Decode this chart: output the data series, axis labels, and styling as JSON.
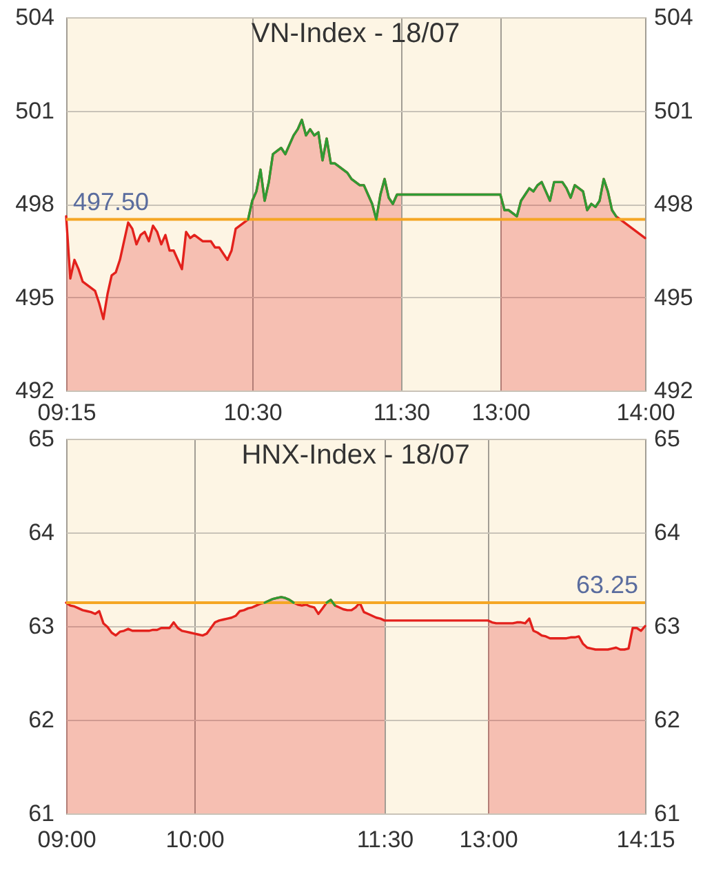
{
  "chart_data": [
    {
      "type": "area",
      "title": "VN-Index - 18/07",
      "categories": [
        "09:15",
        null,
        null,
        null,
        null,
        null,
        null,
        null,
        null,
        null,
        null,
        null,
        null,
        null,
        null,
        null,
        null,
        null,
        null,
        null,
        null,
        null,
        null,
        null,
        null,
        null,
        null,
        null,
        null,
        null,
        null,
        null,
        null,
        null,
        null,
        null,
        null,
        null,
        null,
        null,
        null,
        null,
        null,
        null,
        null,
        "10:30",
        null,
        null,
        null,
        null,
        null,
        null,
        null,
        null,
        null,
        null,
        null,
        null,
        null,
        null,
        null,
        null,
        null,
        null,
        null,
        null,
        null,
        null,
        null,
        null,
        null,
        null,
        null,
        null,
        null,
        null,
        null,
        null,
        null,
        null,
        null,
        "11:30",
        null,
        null,
        null,
        null,
        null,
        null,
        null,
        null,
        null,
        null,
        null,
        null,
        null,
        null,
        null,
        null,
        null,
        null,
        null,
        null,
        null,
        null,
        null,
        "13:00",
        null,
        null,
        null,
        null,
        null,
        null,
        null,
        null,
        null,
        null,
        null,
        null,
        null,
        null,
        null,
        null,
        null,
        null,
        null,
        null,
        null,
        null,
        null,
        null,
        null,
        null,
        null,
        null,
        null,
        null,
        null,
        null,
        null,
        null,
        "14:00"
      ],
      "series": [
        {
          "type": "area",
          "color": "#e3211c",
          "values": [
            497.6,
            495.6,
            496.2,
            495.9,
            495.5,
            495.4,
            495.3,
            495.2,
            494.8,
            494.3,
            495.1,
            495.7,
            495.8,
            496.2,
            496.8,
            497.4,
            497.2,
            496.7,
            497,
            497.1,
            496.8,
            497.3,
            497.1,
            496.7,
            497,
            496.5,
            496.5,
            496.2,
            495.9,
            497.1,
            496.9,
            497,
            496.9,
            496.8,
            496.8,
            496.8,
            496.6,
            496.6,
            496.4,
            496.2,
            496.5,
            497.2,
            497.3,
            497.4,
            497.5,
            498.1,
            498.4,
            499.1,
            498.1,
            498.7,
            499.6,
            499.7,
            499.8,
            499.6,
            499.9,
            500.2,
            500.4,
            500.7,
            500.2,
            500.4,
            500.2,
            500.3,
            499.4,
            500.1,
            499.3,
            499.3,
            499.2,
            499.1,
            499,
            498.8,
            498.7,
            498.6,
            498.6,
            498.3,
            498,
            497.5,
            498.3,
            498.8,
            498.2,
            498,
            498.3,
            498.3,
            null,
            null,
            null,
            null,
            null,
            null,
            null,
            null,
            null,
            null,
            null,
            null,
            null,
            null,
            null,
            null,
            null,
            null,
            null,
            null,
            null,
            null,
            null,
            498.3,
            497.8,
            497.8,
            497.7,
            497.6,
            498.1,
            498.3,
            498.5,
            498.4,
            498.6,
            498.7,
            498.4,
            498.1,
            498.7,
            498.7,
            498.7,
            498.5,
            498.2,
            498.6,
            498.5,
            498.4,
            497.8,
            498,
            497.9,
            498.1,
            498.8,
            498.4,
            497.8,
            497.6,
            497.5,
            497.4,
            497.3,
            497.2,
            497.1,
            497,
            496.9
          ]
        },
        {
          "type": "line",
          "color": "#2f9b34",
          "values": [
            null,
            null,
            null,
            null,
            null,
            null,
            null,
            null,
            null,
            null,
            null,
            null,
            null,
            null,
            null,
            null,
            null,
            null,
            null,
            null,
            null,
            null,
            null,
            null,
            null,
            null,
            null,
            null,
            null,
            null,
            null,
            null,
            null,
            null,
            null,
            null,
            null,
            null,
            null,
            null,
            null,
            null,
            null,
            null,
            497.5,
            498.1,
            498.4,
            499.1,
            498.1,
            498.7,
            499.6,
            499.7,
            499.8,
            499.6,
            499.9,
            500.2,
            500.4,
            500.7,
            500.2,
            500.4,
            500.2,
            500.3,
            499.4,
            500.1,
            499.3,
            499.3,
            499.2,
            499.1,
            499,
            498.8,
            498.7,
            498.6,
            498.6,
            498.3,
            498,
            497.5,
            498.3,
            498.8,
            498.2,
            498,
            498.3,
            498.3,
            498.3,
            498.3,
            498.3,
            498.3,
            498.3,
            498.3,
            498.3,
            498.3,
            498.3,
            498.3,
            498.3,
            498.3,
            498.3,
            498.3,
            498.3,
            498.3,
            498.3,
            498.3,
            498.3,
            498.3,
            498.3,
            498.3,
            498.3,
            498.3,
            497.8,
            497.8,
            497.7,
            497.6,
            498.1,
            498.3,
            498.5,
            498.4,
            498.6,
            498.7,
            498.4,
            498.1,
            498.7,
            498.7,
            498.7,
            498.5,
            498.2,
            498.6,
            498.5,
            498.4,
            497.8,
            498,
            497.9,
            498.1,
            498.8,
            498.4,
            497.8,
            497.6,
            null,
            null,
            null,
            null,
            null,
            null,
            null
          ]
        }
      ],
      "ylim": [
        492,
        504
      ],
      "yticks": [
        492,
        495,
        498,
        501,
        504
      ],
      "y2lim": [
        492,
        504
      ],
      "y2ticks": [
        492,
        495,
        498,
        501,
        504
      ],
      "ref_lines": [
        {
          "axis": "y",
          "value": 497.5,
          "label": "497.50",
          "color": "#f5a623"
        }
      ],
      "grid": true
    },
    {
      "type": "area",
      "title": "HNX-Index - 18/07",
      "categories": [
        "09:00",
        null,
        null,
        null,
        null,
        null,
        null,
        null,
        null,
        null,
        null,
        null,
        null,
        null,
        null,
        null,
        null,
        null,
        null,
        null,
        null,
        null,
        null,
        null,
        null,
        null,
        null,
        null,
        null,
        null,
        null,
        "10:00",
        null,
        null,
        null,
        null,
        null,
        null,
        null,
        null,
        null,
        null,
        null,
        null,
        null,
        null,
        null,
        null,
        null,
        null,
        null,
        null,
        null,
        null,
        null,
        null,
        null,
        null,
        null,
        null,
        null,
        null,
        null,
        null,
        null,
        null,
        null,
        null,
        null,
        null,
        null,
        null,
        null,
        null,
        null,
        null,
        null,
        "11:30",
        null,
        null,
        null,
        null,
        null,
        null,
        null,
        null,
        null,
        null,
        null,
        null,
        null,
        null,
        null,
        null,
        null,
        null,
        null,
        null,
        null,
        null,
        null,
        null,
        "13:00",
        null,
        null,
        null,
        null,
        null,
        null,
        null,
        null,
        null,
        null,
        null,
        null,
        null,
        null,
        null,
        null,
        null,
        null,
        null,
        null,
        null,
        null,
        null,
        null,
        null,
        null,
        null,
        null,
        null,
        null,
        null,
        null,
        null,
        null,
        null,
        null,
        null,
        "14:15"
      ],
      "series": [
        {
          "type": "area",
          "color": "#e3211c",
          "values": [
            63.25,
            63.22,
            63.21,
            63.19,
            63.17,
            63.16,
            63.15,
            63.13,
            63.16,
            63.03,
            62.99,
            62.93,
            62.9,
            62.94,
            62.95,
            62.97,
            62.95,
            62.95,
            62.95,
            62.95,
            62.95,
            62.96,
            62.96,
            62.98,
            62.98,
            62.98,
            63.04,
            62.98,
            62.95,
            62.94,
            62.93,
            62.92,
            62.91,
            62.9,
            62.92,
            62.98,
            63.04,
            63.06,
            63.07,
            63.08,
            63.09,
            63.11,
            63.16,
            63.17,
            63.19,
            63.2,
            63.22,
            63.24,
            63.25,
            63.27,
            63.29,
            63.3,
            63.31,
            63.3,
            63.28,
            63.25,
            63.23,
            63.22,
            63.23,
            63.21,
            63.2,
            63.13,
            63.19,
            63.25,
            63.28,
            63.22,
            63.2,
            63.18,
            63.17,
            63.17,
            63.2,
            63.25,
            63.15,
            63.13,
            63.11,
            63.09,
            63.08,
            63.06,
            null,
            null,
            null,
            null,
            null,
            null,
            null,
            null,
            null,
            null,
            null,
            null,
            null,
            null,
            null,
            null,
            null,
            null,
            null,
            null,
            null,
            null,
            null,
            null,
            63.06,
            63.04,
            63.03,
            63.03,
            63.03,
            63.03,
            63.03,
            63.04,
            63.04,
            63.03,
            63.08,
            62.95,
            62.93,
            62.9,
            62.89,
            62.87,
            62.87,
            62.87,
            62.87,
            62.87,
            62.88,
            62.88,
            62.89,
            62.81,
            62.77,
            62.76,
            62.75,
            62.75,
            62.75,
            62.75,
            62.76,
            62.77,
            62.75,
            62.75,
            62.76,
            62.98,
            62.98,
            62.95,
            63
          ]
        },
        {
          "type": "line",
          "color": "#2f9b34",
          "values": [
            null,
            null,
            null,
            null,
            null,
            null,
            null,
            null,
            null,
            null,
            null,
            null,
            null,
            null,
            null,
            null,
            null,
            null,
            null,
            null,
            null,
            null,
            null,
            null,
            null,
            null,
            null,
            null,
            null,
            null,
            null,
            null,
            null,
            null,
            null,
            null,
            null,
            null,
            null,
            null,
            null,
            null,
            null,
            null,
            null,
            null,
            null,
            null,
            63.25,
            63.27,
            63.29,
            63.3,
            63.31,
            63.3,
            63.28,
            63.25,
            null,
            null,
            null,
            null,
            null,
            null,
            null,
            null,
            null,
            null,
            null,
            null,
            null,
            null,
            null,
            null,
            null,
            null,
            null,
            null,
            null,
            null,
            null,
            null,
            null,
            null,
            null,
            null,
            null,
            null,
            null,
            null,
            null,
            null,
            null,
            null,
            null,
            null,
            null,
            null,
            null,
            null,
            null,
            null,
            null,
            null,
            null,
            null,
            null,
            null,
            null,
            null,
            null,
            null,
            null,
            null,
            null,
            null,
            null,
            null,
            null,
            null,
            null,
            null,
            null,
            null,
            null,
            null,
            null,
            null,
            null,
            null,
            null,
            null,
            null,
            null,
            null,
            null,
            null,
            null,
            null,
            null,
            null,
            null,
            null
          ]
        },
        {
          "type": "line",
          "color": "#2f9b34",
          "values": [
            null,
            null,
            null,
            null,
            null,
            null,
            null,
            null,
            null,
            null,
            null,
            null,
            null,
            null,
            null,
            null,
            null,
            null,
            null,
            null,
            null,
            null,
            null,
            null,
            null,
            null,
            null,
            null,
            null,
            null,
            null,
            null,
            null,
            null,
            null,
            null,
            null,
            null,
            null,
            null,
            null,
            null,
            null,
            null,
            null,
            null,
            null,
            null,
            null,
            null,
            null,
            null,
            null,
            null,
            null,
            null,
            null,
            null,
            null,
            null,
            null,
            null,
            null,
            63.25,
            63.28,
            63.22,
            null,
            null,
            null,
            null,
            null,
            null,
            null,
            null,
            null,
            null,
            null,
            null,
            null,
            null,
            null,
            null,
            null,
            null,
            null,
            null,
            null,
            null,
            null,
            null,
            null,
            null,
            null,
            null,
            null,
            null,
            null,
            null,
            null,
            null,
            null,
            null,
            null,
            null,
            null,
            null,
            null,
            null,
            null,
            null,
            null,
            null,
            null,
            null,
            null,
            null,
            null,
            null,
            null,
            null,
            null,
            null,
            null,
            null,
            null,
            null,
            null,
            null,
            null,
            null,
            null,
            null,
            null,
            null,
            null,
            null,
            null,
            null,
            null,
            null,
            null
          ]
        }
      ],
      "ylim": [
        61,
        65
      ],
      "yticks": [
        61,
        62,
        63,
        64,
        65
      ],
      "y2lim": [
        61,
        65
      ],
      "y2ticks": [
        61,
        62,
        63,
        64,
        65
      ],
      "ref_lines": [
        {
          "axis": "y",
          "value": 63.25,
          "label": "63.25",
          "color": "#f5a623"
        }
      ],
      "grid": true
    }
  ]
}
